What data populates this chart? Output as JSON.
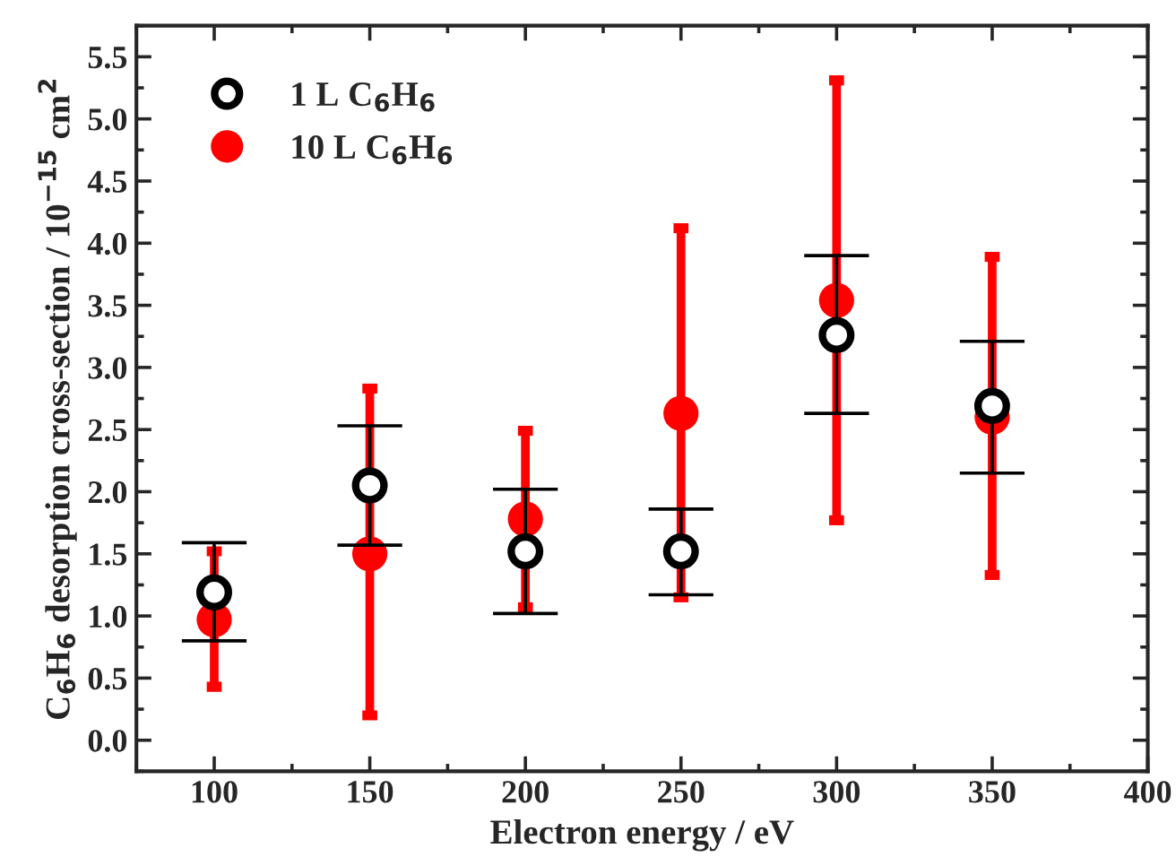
{
  "chart_data": {
    "type": "scatter",
    "xlabel": "Electron energy / eV",
    "ylabel": "C$_{6}$H$_{6}$ desorption cross-section / 10$^{−15}$ cm$^{2}$",
    "x": [
      100,
      150,
      200,
      250,
      300,
      350
    ],
    "series": [
      {
        "name": "1 L C$_{6}$H$_{6}$",
        "color": "#000000",
        "values": [
          1.19,
          2.05,
          1.52,
          1.52,
          3.26,
          2.69
        ],
        "errors": [
          [
            0.8,
            1.59
          ],
          [
            1.57,
            2.53
          ],
          [
            1.02,
            2.02
          ],
          [
            1.17,
            1.86
          ],
          [
            2.63,
            3.9
          ],
          [
            2.15,
            3.21
          ]
        ]
      },
      {
        "name": "10 L C$_{6}$H$_{6}$",
        "color": "#ff0000",
        "values": [
          0.97,
          1.5,
          1.78,
          2.63,
          3.54,
          2.6
        ],
        "errors": [
          [
            0.43,
            1.52
          ],
          [
            0.2,
            2.83
          ],
          [
            1.07,
            2.49
          ],
          [
            1.15,
            4.12
          ],
          [
            1.77,
            5.31
          ],
          [
            1.33,
            3.89
          ]
        ]
      }
    ],
    "xlim": [
      75,
      400
    ],
    "xticks": [
      100,
      150,
      200,
      250,
      300,
      350,
      400
    ],
    "ylim": [
      -0.25,
      5.75
    ],
    "yticks": [
      {
        "value": 0,
        "label": "0.0"
      },
      0.5,
      {
        "value": 1,
        "label": "1.0"
      },
      1.5,
      {
        "value": 2,
        "label": "2.0"
      },
      2.5,
      {
        "value": 3,
        "label": "3.0"
      },
      3.5,
      {
        "value": 4,
        "label": "4.0"
      },
      4.5,
      {
        "value": 5,
        "label": "5.0"
      },
      5.5
    ],
    "marker": "circle",
    "grid": false,
    "legend": "top left"
  }
}
